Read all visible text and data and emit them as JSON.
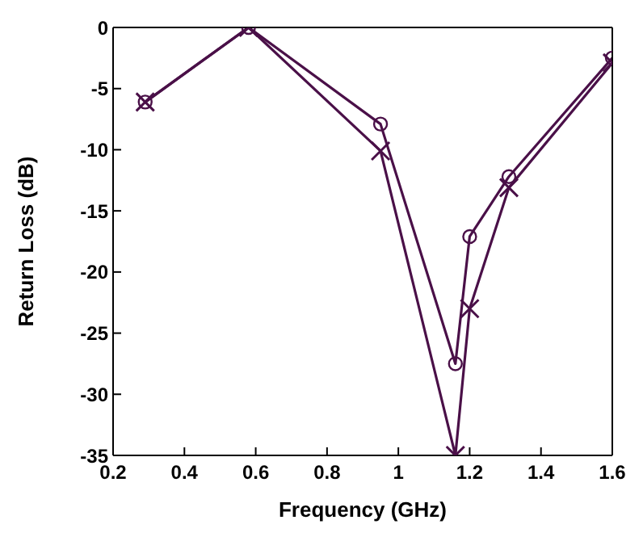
{
  "chart_data": {
    "type": "line",
    "xlabel": "Frequency (GHz)",
    "ylabel": "Return Loss (dB)",
    "xlim": [
      0.2,
      1.6
    ],
    "xticks": [
      0.2,
      0.4,
      0.6,
      0.8,
      1,
      1.2,
      1.4,
      1.6
    ],
    "ylim": [
      -35,
      0
    ],
    "yticks": [
      -35,
      -30,
      -25,
      -20,
      -15,
      -10,
      -5,
      0
    ],
    "x": [
      0.29,
      0.58,
      0.95,
      1.16,
      1.2,
      1.31,
      1.6
    ],
    "series": [
      {
        "color": "#4a1048",
        "marker": "circle",
        "values": [
          -6.1,
          0,
          -7.9,
          -27.5,
          -17.1,
          -12.2,
          -2.5
        ]
      },
      {
        "color": "#4a1048",
        "marker": "cross",
        "values": [
          -6.1,
          0,
          -10.1,
          -35,
          -23,
          -13.1,
          -2.9
        ]
      }
    ],
    "grid": false,
    "legend": false,
    "line_style": "solid"
  }
}
